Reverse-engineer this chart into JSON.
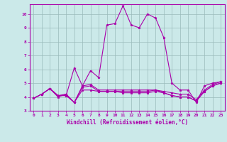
{
  "xlabel": "Windchill (Refroidissement éolien,°C)",
  "xlim": [
    -0.5,
    23.5
  ],
  "ylim": [
    3,
    10.7
  ],
  "xticks": [
    0,
    1,
    2,
    3,
    4,
    5,
    6,
    7,
    8,
    9,
    10,
    11,
    12,
    13,
    14,
    15,
    16,
    17,
    18,
    19,
    20,
    21,
    22,
    23
  ],
  "yticks": [
    3,
    4,
    5,
    6,
    7,
    8,
    9,
    10
  ],
  "background_color": "#cbe9e9",
  "line_color": "#aa00aa",
  "grid_color": "#99bbbb",
  "lines": [
    [
      3.9,
      4.2,
      4.6,
      4.1,
      4.1,
      6.1,
      4.8,
      5.9,
      5.4,
      9.2,
      9.3,
      10.6,
      9.2,
      9.0,
      10.0,
      9.7,
      8.3,
      5.0,
      4.5,
      4.5,
      3.6,
      4.8,
      5.0,
      5.1
    ],
    [
      3.9,
      4.2,
      4.6,
      4.1,
      4.2,
      3.6,
      4.8,
      4.9,
      4.5,
      4.5,
      4.5,
      4.5,
      4.5,
      4.5,
      4.5,
      4.5,
      4.4,
      4.3,
      4.2,
      4.2,
      3.8,
      4.5,
      4.9,
      5.1
    ],
    [
      3.9,
      4.2,
      4.6,
      4.0,
      4.2,
      3.6,
      4.5,
      4.5,
      4.4,
      4.4,
      4.4,
      4.4,
      4.4,
      4.4,
      4.4,
      4.5,
      4.3,
      4.1,
      4.0,
      4.0,
      3.7,
      4.4,
      4.8,
      5.0
    ],
    [
      3.9,
      4.2,
      4.6,
      4.1,
      4.1,
      3.6,
      4.7,
      4.8,
      4.4,
      4.4,
      4.4,
      4.3,
      4.3,
      4.3,
      4.3,
      4.4,
      4.3,
      4.1,
      4.0,
      4.0,
      3.7,
      4.4,
      4.8,
      5.0
    ]
  ]
}
